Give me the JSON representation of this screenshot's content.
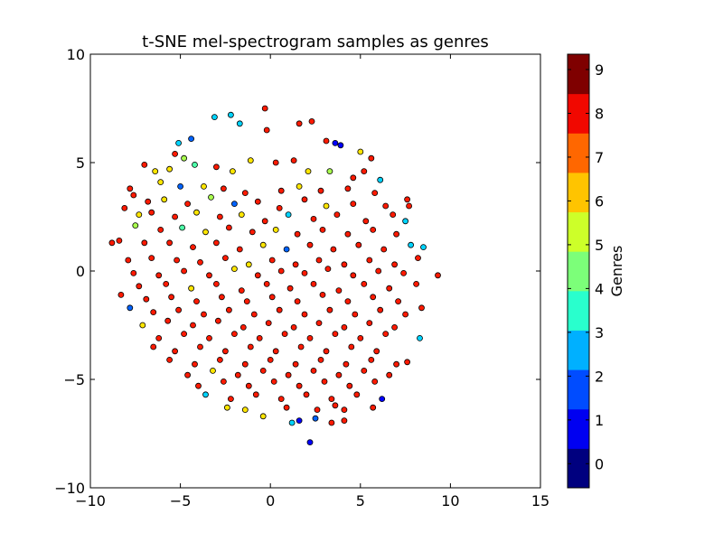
{
  "chart_data": {
    "type": "scatter",
    "title": "t-SNE mel-spectrogram samples as genres",
    "xlabel": "",
    "ylabel": "",
    "xlim": [
      -10,
      15
    ],
    "ylim": [
      -10,
      10
    ],
    "x_ticks": [
      -10,
      -5,
      0,
      5,
      10,
      15
    ],
    "y_ticks": [
      -10,
      -5,
      0,
      5,
      10
    ],
    "x_tick_labels": [
      "−10",
      "−5",
      "0",
      "5",
      "10",
      "15"
    ],
    "y_tick_labels": [
      "−10",
      "−5",
      "0",
      "5",
      "10"
    ],
    "grid": false,
    "colorbar": {
      "label": "Genres",
      "ticks": [
        "0",
        "1",
        "2",
        "3",
        "4",
        "5",
        "6",
        "7",
        "8",
        "9"
      ],
      "colors": [
        "#00007f",
        "#0000f1",
        "#004cff",
        "#00b0ff",
        "#29ffcd",
        "#7cff79",
        "#cdff29",
        "#ffc400",
        "#ff6700",
        "#f10800",
        "#7f0000"
      ]
    },
    "genre_colors": [
      "#00007f",
      "#0000ff",
      "#0063ff",
      "#00d4ff",
      "#4effa9",
      "#a9ff4e",
      "#ffe600",
      "#ff7a00",
      "#ff1a00",
      "#7f0000"
    ],
    "points": [
      [
        -3.1,
        7.1,
        3
      ],
      [
        -2.2,
        7.2,
        3
      ],
      [
        -0.3,
        7.5,
        8
      ],
      [
        1.6,
        6.8,
        8
      ],
      [
        2.3,
        6.9,
        8
      ],
      [
        -5.1,
        5.9,
        3
      ],
      [
        -4.4,
        6.1,
        2
      ],
      [
        -1.7,
        6.8,
        3
      ],
      [
        -0.2,
        6.5,
        8
      ],
      [
        3.1,
        6.0,
        8
      ],
      [
        3.6,
        5.9,
        1
      ],
      [
        3.9,
        5.8,
        1
      ],
      [
        5.0,
        5.5,
        6
      ],
      [
        5.6,
        5.2,
        8
      ],
      [
        -5.3,
        5.4,
        8
      ],
      [
        -4.8,
        5.2,
        5
      ],
      [
        -7.0,
        4.9,
        8
      ],
      [
        -6.4,
        4.6,
        6
      ],
      [
        -5.6,
        4.7,
        6
      ],
      [
        -4.2,
        4.9,
        4
      ],
      [
        -3.0,
        4.8,
        8
      ],
      [
        -2.1,
        4.6,
        6
      ],
      [
        -1.1,
        5.1,
        6
      ],
      [
        0.3,
        5.0,
        8
      ],
      [
        1.3,
        5.1,
        8
      ],
      [
        2.1,
        4.6,
        6
      ],
      [
        3.3,
        4.6,
        5
      ],
      [
        4.6,
        4.3,
        8
      ],
      [
        5.2,
        4.6,
        8
      ],
      [
        6.1,
        4.2,
        3
      ],
      [
        -6.1,
        4.1,
        6
      ],
      [
        -5.0,
        3.9,
        2
      ],
      [
        -3.7,
        3.9,
        6
      ],
      [
        -2.6,
        3.8,
        8
      ],
      [
        -1.4,
        3.6,
        8
      ],
      [
        0.6,
        3.7,
        8
      ],
      [
        1.6,
        3.9,
        6
      ],
      [
        2.8,
        3.7,
        8
      ],
      [
        4.3,
        3.8,
        8
      ],
      [
        5.8,
        3.6,
        8
      ],
      [
        -7.8,
        3.8,
        8
      ],
      [
        -7.6,
        3.5,
        8
      ],
      [
        -6.8,
        3.2,
        8
      ],
      [
        -5.9,
        3.3,
        6
      ],
      [
        -4.6,
        3.1,
        8
      ],
      [
        -3.3,
        3.4,
        5
      ],
      [
        -2.0,
        3.1,
        2
      ],
      [
        -0.7,
        3.2,
        8
      ],
      [
        0.5,
        2.9,
        8
      ],
      [
        1.9,
        3.3,
        8
      ],
      [
        3.1,
        3.0,
        6
      ],
      [
        4.6,
        3.1,
        8
      ],
      [
        6.4,
        3.0,
        8
      ],
      [
        7.6,
        3.3,
        8
      ],
      [
        7.7,
        3.0,
        8
      ],
      [
        -8.1,
        2.9,
        8
      ],
      [
        -7.3,
        2.6,
        6
      ],
      [
        -6.6,
        2.7,
        8
      ],
      [
        -5.3,
        2.5,
        8
      ],
      [
        -4.1,
        2.7,
        6
      ],
      [
        -2.8,
        2.5,
        8
      ],
      [
        -1.6,
        2.6,
        6
      ],
      [
        -0.3,
        2.3,
        8
      ],
      [
        1.0,
        2.6,
        3
      ],
      [
        2.4,
        2.4,
        8
      ],
      [
        3.7,
        2.6,
        8
      ],
      [
        5.3,
        2.3,
        8
      ],
      [
        6.8,
        2.6,
        8
      ],
      [
        7.5,
        2.3,
        3
      ],
      [
        -7.5,
        2.1,
        5
      ],
      [
        -6.1,
        1.9,
        8
      ],
      [
        -4.9,
        2.0,
        4
      ],
      [
        -3.6,
        1.8,
        6
      ],
      [
        -2.3,
        2.0,
        8
      ],
      [
        -1.0,
        1.8,
        8
      ],
      [
        0.3,
        1.9,
        6
      ],
      [
        1.5,
        1.7,
        8
      ],
      [
        2.9,
        1.9,
        8
      ],
      [
        4.3,
        1.7,
        8
      ],
      [
        5.7,
        1.9,
        8
      ],
      [
        7.0,
        1.7,
        8
      ],
      [
        -8.4,
        1.4,
        8
      ],
      [
        -8.8,
        1.3,
        8
      ],
      [
        -7.0,
        1.3,
        8
      ],
      [
        -5.6,
        1.3,
        8
      ],
      [
        -4.3,
        1.1,
        8
      ],
      [
        -3.0,
        1.3,
        8
      ],
      [
        -1.7,
        1.0,
        8
      ],
      [
        -0.4,
        1.2,
        6
      ],
      [
        0.9,
        1.0,
        2
      ],
      [
        2.2,
        1.2,
        8
      ],
      [
        3.5,
        1.0,
        8
      ],
      [
        4.9,
        1.2,
        8
      ],
      [
        6.3,
        1.0,
        8
      ],
      [
        7.8,
        1.2,
        3
      ],
      [
        8.5,
        1.1,
        3
      ],
      [
        -7.9,
        0.5,
        8
      ],
      [
        -6.6,
        0.6,
        8
      ],
      [
        -5.2,
        0.5,
        8
      ],
      [
        -3.9,
        0.4,
        8
      ],
      [
        -2.5,
        0.6,
        8
      ],
      [
        -1.2,
        0.3,
        6
      ],
      [
        0.1,
        0.5,
        8
      ],
      [
        1.4,
        0.3,
        8
      ],
      [
        2.7,
        0.5,
        8
      ],
      [
        4.1,
        0.3,
        8
      ],
      [
        5.5,
        0.5,
        8
      ],
      [
        6.9,
        0.3,
        8
      ],
      [
        8.2,
        0.6,
        8
      ],
      [
        -7.6,
        -0.1,
        8
      ],
      [
        -6.2,
        -0.2,
        8
      ],
      [
        -4.8,
        0.0,
        8
      ],
      [
        -3.4,
        -0.2,
        8
      ],
      [
        -2.0,
        0.1,
        6
      ],
      [
        -0.7,
        -0.2,
        8
      ],
      [
        0.6,
        0.0,
        8
      ],
      [
        1.9,
        -0.1,
        8
      ],
      [
        3.2,
        0.1,
        8
      ],
      [
        4.6,
        -0.2,
        8
      ],
      [
        6.0,
        0.0,
        8
      ],
      [
        7.4,
        -0.1,
        8
      ],
      [
        9.3,
        -0.2,
        8
      ],
      [
        -7.3,
        -0.7,
        8
      ],
      [
        -5.8,
        -0.6,
        8
      ],
      [
        -4.4,
        -0.8,
        6
      ],
      [
        -3.0,
        -0.6,
        8
      ],
      [
        -1.6,
        -0.9,
        8
      ],
      [
        -0.2,
        -0.6,
        8
      ],
      [
        1.1,
        -0.8,
        8
      ],
      [
        2.4,
        -0.6,
        8
      ],
      [
        3.8,
        -0.9,
        8
      ],
      [
        5.2,
        -0.6,
        8
      ],
      [
        6.6,
        -0.8,
        8
      ],
      [
        8.1,
        -0.6,
        8
      ],
      [
        -8.3,
        -1.1,
        8
      ],
      [
        -6.9,
        -1.3,
        8
      ],
      [
        -5.5,
        -1.2,
        8
      ],
      [
        -4.1,
        -1.4,
        8
      ],
      [
        -2.7,
        -1.2,
        8
      ],
      [
        -1.3,
        -1.4,
        8
      ],
      [
        0.1,
        -1.2,
        8
      ],
      [
        1.5,
        -1.4,
        8
      ],
      [
        2.9,
        -1.1,
        8
      ],
      [
        4.3,
        -1.4,
        8
      ],
      [
        5.7,
        -1.2,
        8
      ],
      [
        7.1,
        -1.4,
        8
      ],
      [
        -7.8,
        -1.7,
        2
      ],
      [
        -6.5,
        -1.9,
        8
      ],
      [
        -5.1,
        -1.8,
        8
      ],
      [
        -3.7,
        -2.0,
        8
      ],
      [
        -2.3,
        -1.8,
        8
      ],
      [
        -0.9,
        -2.0,
        8
      ],
      [
        0.5,
        -1.8,
        8
      ],
      [
        1.9,
        -2.0,
        8
      ],
      [
        3.3,
        -1.8,
        8
      ],
      [
        4.7,
        -2.0,
        8
      ],
      [
        6.1,
        -1.8,
        8
      ],
      [
        7.5,
        -2.0,
        8
      ],
      [
        8.4,
        -1.7,
        8
      ],
      [
        -7.1,
        -2.5,
        6
      ],
      [
        -5.7,
        -2.3,
        8
      ],
      [
        -4.3,
        -2.5,
        8
      ],
      [
        -2.9,
        -2.3,
        8
      ],
      [
        -1.5,
        -2.6,
        8
      ],
      [
        -0.1,
        -2.4,
        8
      ],
      [
        1.3,
        -2.6,
        8
      ],
      [
        2.7,
        -2.4,
        8
      ],
      [
        4.1,
        -2.6,
        8
      ],
      [
        5.5,
        -2.4,
        8
      ],
      [
        6.9,
        -2.6,
        8
      ],
      [
        -6.2,
        -3.1,
        8
      ],
      [
        -4.8,
        -2.9,
        8
      ],
      [
        -3.4,
        -3.1,
        8
      ],
      [
        -2.0,
        -2.9,
        8
      ],
      [
        -0.6,
        -3.1,
        8
      ],
      [
        0.8,
        -2.9,
        8
      ],
      [
        2.2,
        -3.1,
        8
      ],
      [
        3.6,
        -2.9,
        8
      ],
      [
        5.0,
        -3.1,
        8
      ],
      [
        6.4,
        -2.9,
        8
      ],
      [
        8.3,
        -3.1,
        3
      ],
      [
        -6.5,
        -3.5,
        8
      ],
      [
        -5.3,
        -3.7,
        8
      ],
      [
        -3.9,
        -3.5,
        8
      ],
      [
        -2.5,
        -3.7,
        8
      ],
      [
        -1.1,
        -3.5,
        8
      ],
      [
        0.3,
        -3.7,
        8
      ],
      [
        1.7,
        -3.5,
        8
      ],
      [
        3.1,
        -3.7,
        8
      ],
      [
        4.5,
        -3.5,
        8
      ],
      [
        5.9,
        -3.7,
        8
      ],
      [
        -5.6,
        -4.1,
        8
      ],
      [
        -4.2,
        -4.3,
        8
      ],
      [
        -2.8,
        -4.1,
        8
      ],
      [
        -1.4,
        -4.3,
        8
      ],
      [
        0.0,
        -4.1,
        8
      ],
      [
        1.4,
        -4.3,
        8
      ],
      [
        2.8,
        -4.1,
        8
      ],
      [
        4.2,
        -4.3,
        8
      ],
      [
        5.6,
        -4.1,
        8
      ],
      [
        7.0,
        -4.3,
        8
      ],
      [
        7.6,
        -4.2,
        8
      ],
      [
        -4.6,
        -4.8,
        8
      ],
      [
        -3.2,
        -4.6,
        6
      ],
      [
        -1.8,
        -4.8,
        8
      ],
      [
        -0.4,
        -4.6,
        8
      ],
      [
        1.0,
        -4.8,
        8
      ],
      [
        2.4,
        -4.6,
        8
      ],
      [
        3.8,
        -4.8,
        8
      ],
      [
        5.2,
        -4.6,
        8
      ],
      [
        6.6,
        -4.8,
        8
      ],
      [
        -4.0,
        -5.3,
        8
      ],
      [
        -2.6,
        -5.1,
        8
      ],
      [
        -1.2,
        -5.3,
        8
      ],
      [
        0.2,
        -5.1,
        8
      ],
      [
        1.6,
        -5.3,
        8
      ],
      [
        3.0,
        -5.1,
        8
      ],
      [
        4.4,
        -5.3,
        8
      ],
      [
        5.8,
        -5.1,
        8
      ],
      [
        -3.6,
        -5.7,
        3
      ],
      [
        -2.2,
        -5.9,
        8
      ],
      [
        -0.8,
        -5.7,
        8
      ],
      [
        0.6,
        -5.9,
        8
      ],
      [
        2.0,
        -5.7,
        8
      ],
      [
        3.4,
        -5.9,
        8
      ],
      [
        4.8,
        -5.7,
        8
      ],
      [
        6.2,
        -5.9,
        1
      ],
      [
        -2.4,
        -6.3,
        6
      ],
      [
        -1.4,
        -6.4,
        6
      ],
      [
        0.9,
        -6.3,
        8
      ],
      [
        2.6,
        -6.4,
        8
      ],
      [
        3.6,
        -6.2,
        8
      ],
      [
        4.1,
        -6.4,
        8
      ],
      [
        5.7,
        -6.3,
        8
      ],
      [
        -0.4,
        -6.7,
        6
      ],
      [
        1.2,
        -7.0,
        3
      ],
      [
        1.6,
        -6.9,
        1
      ],
      [
        2.5,
        -6.8,
        2
      ],
      [
        3.4,
        -7.0,
        8
      ],
      [
        4.1,
        -6.9,
        8
      ],
      [
        2.2,
        -7.9,
        1
      ]
    ]
  }
}
